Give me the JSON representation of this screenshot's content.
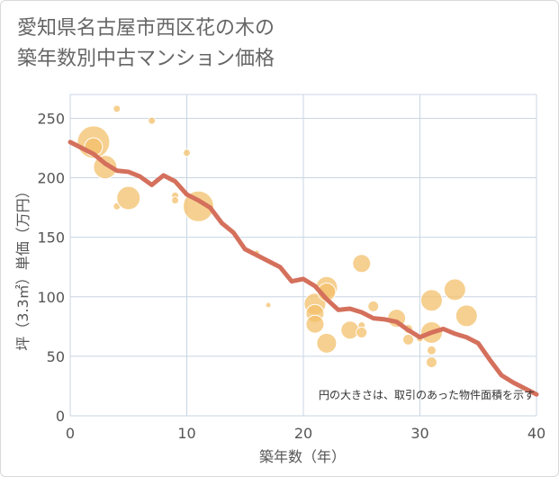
{
  "title_lines": [
    "愛知県名古屋市西区花の木の",
    "築年数別中古マンション価格"
  ],
  "chart_data": {
    "type": "scatter",
    "xlabel": "築年数（年）",
    "ylabel": "坪（3.3㎡）単価（万円）",
    "xlim": [
      0,
      40
    ],
    "ylim": [
      0,
      270
    ],
    "xticks": [
      0,
      10,
      20,
      30,
      40
    ],
    "yticks": [
      0,
      50,
      100,
      150,
      200,
      250
    ],
    "grid": true,
    "note": "円の大きさは、取引のあった物件面積を示す",
    "colors": {
      "bubble": "#f3c06b",
      "line": "#d4705c",
      "grid": "#c9d6e3"
    },
    "bubbles": [
      {
        "x": 2,
        "y": 230,
        "size": 18
      },
      {
        "x": 2,
        "y": 226,
        "size": 10
      },
      {
        "x": 3,
        "y": 209,
        "size": 13
      },
      {
        "x": 4,
        "y": 258,
        "size": 4
      },
      {
        "x": 4,
        "y": 176,
        "size": 4
      },
      {
        "x": 5,
        "y": 183,
        "size": 13
      },
      {
        "x": 7,
        "y": 248,
        "size": 4
      },
      {
        "x": 9,
        "y": 185,
        "size": 4
      },
      {
        "x": 9,
        "y": 181,
        "size": 4
      },
      {
        "x": 10,
        "y": 221,
        "size": 4
      },
      {
        "x": 11,
        "y": 176,
        "size": 17
      },
      {
        "x": 16,
        "y": 137,
        "size": 3
      },
      {
        "x": 17,
        "y": 93,
        "size": 3
      },
      {
        "x": 21,
        "y": 94,
        "size": 12
      },
      {
        "x": 21,
        "y": 86,
        "size": 10
      },
      {
        "x": 21,
        "y": 77,
        "size": 10
      },
      {
        "x": 22,
        "y": 108,
        "size": 12
      },
      {
        "x": 22,
        "y": 104,
        "size": 10
      },
      {
        "x": 22,
        "y": 61,
        "size": 11
      },
      {
        "x": 24,
        "y": 72,
        "size": 10
      },
      {
        "x": 25,
        "y": 128,
        "size": 10
      },
      {
        "x": 25,
        "y": 76,
        "size": 4
      },
      {
        "x": 25,
        "y": 70,
        "size": 6
      },
      {
        "x": 26,
        "y": 92,
        "size": 6
      },
      {
        "x": 28,
        "y": 82,
        "size": 10
      },
      {
        "x": 29,
        "y": 73,
        "size": 5
      },
      {
        "x": 29,
        "y": 64,
        "size": 6
      },
      {
        "x": 30,
        "y": 65,
        "size": 4
      },
      {
        "x": 31,
        "y": 97,
        "size": 12
      },
      {
        "x": 31,
        "y": 70,
        "size": 12
      },
      {
        "x": 31,
        "y": 55,
        "size": 5
      },
      {
        "x": 31,
        "y": 45,
        "size": 6
      },
      {
        "x": 33,
        "y": 106,
        "size": 12
      },
      {
        "x": 34,
        "y": 84,
        "size": 12
      }
    ],
    "trend": {
      "x": [
        0,
        1,
        2,
        3,
        4,
        5,
        6,
        7,
        8,
        9,
        10,
        11,
        12,
        13,
        14,
        15,
        16,
        17,
        18,
        19,
        20,
        21,
        22,
        23,
        24,
        25,
        26,
        27,
        28,
        29,
        30,
        31,
        32,
        33,
        34,
        35,
        36,
        37,
        38,
        39,
        40
      ],
      "y": [
        230,
        225,
        220,
        212,
        206,
        205,
        201,
        194,
        202,
        197,
        186,
        181,
        175,
        162,
        154,
        140,
        135,
        130,
        125,
        113,
        115,
        109,
        98,
        89,
        90,
        87,
        82,
        81,
        79,
        72,
        66,
        70,
        73,
        69,
        66,
        61,
        47,
        34,
        28,
        23,
        18
      ]
    }
  }
}
